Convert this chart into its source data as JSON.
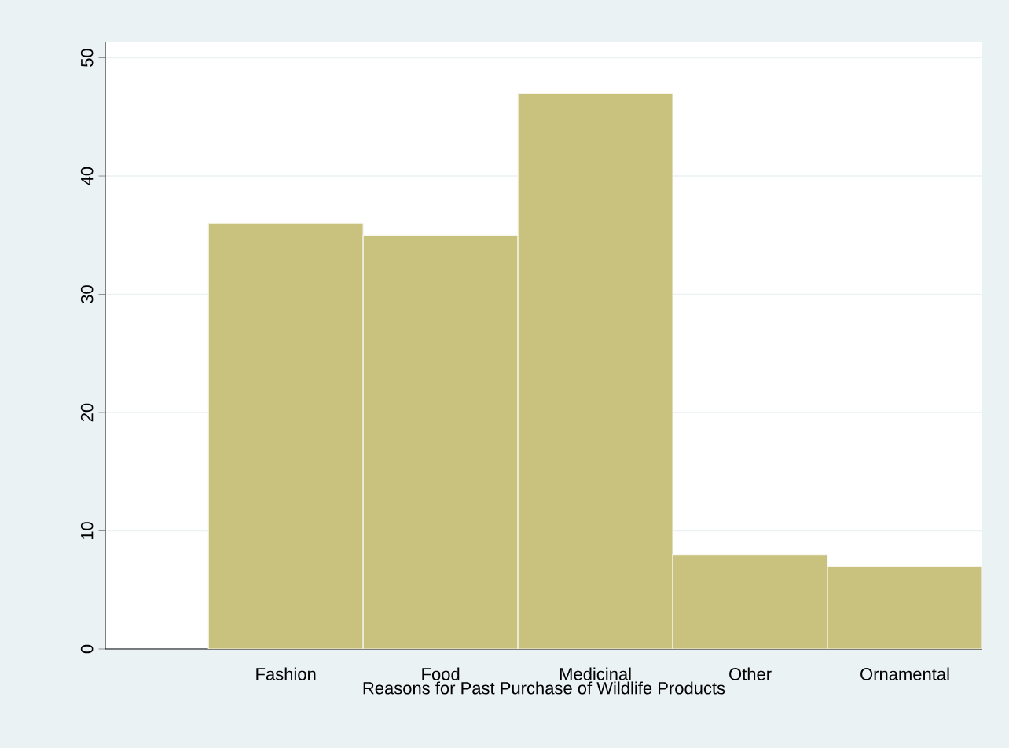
{
  "chart_data": {
    "type": "bar",
    "xlabel": "Reasons for Past Purchase of Wildlife Products",
    "categories": [
      "Fashion",
      "Food",
      "Medicinal",
      "Other",
      "Ornamental"
    ],
    "values": [
      36,
      35,
      47,
      8,
      7
    ],
    "color": "#c9c17e",
    "ylim": [
      0,
      51.3
    ],
    "yticks": [
      0,
      10,
      20,
      30,
      40,
      50
    ],
    "grid": "y"
  }
}
